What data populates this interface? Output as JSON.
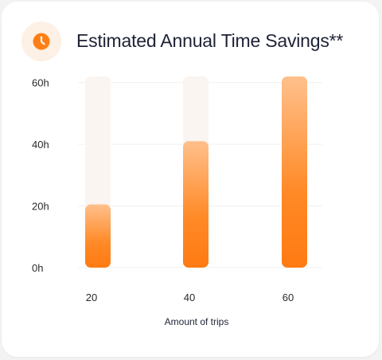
{
  "header": {
    "title": "Estimated Annual Time Savings**",
    "icon": "clock-icon"
  },
  "colors": {
    "accent": "#ff7f16",
    "accent_light": "#ffc08c",
    "track": "#faf5f1",
    "icon_bg": "#fdf0e4",
    "grid": "#f0f0f0"
  },
  "chart_data": {
    "type": "bar",
    "categories": [
      "20",
      "40",
      "60"
    ],
    "values": [
      20.5,
      41,
      62
    ],
    "xlabel": "Amount of trips",
    "ylabel": "",
    "yticks": [
      "0h",
      "20h",
      "40h",
      "60h"
    ],
    "ytick_values": [
      0,
      20,
      40,
      60
    ],
    "ylim": [
      0,
      62
    ],
    "grid": true,
    "background_track": true
  }
}
